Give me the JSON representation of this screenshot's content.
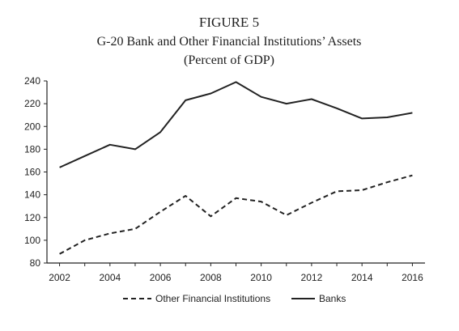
{
  "chart_data": {
    "type": "line",
    "figure_label": "FIGURE 5",
    "title_line1": "G-20 Bank and Other Financial Institutions’ Assets",
    "title_line2": "(Percent of GDP)",
    "xlabel": "",
    "ylabel": "",
    "ylim": [
      80,
      240
    ],
    "y_ticks": [
      80,
      100,
      120,
      140,
      160,
      180,
      200,
      220,
      240
    ],
    "xlim": [
      2001.5,
      2016.5
    ],
    "x_ticks": [
      2002,
      2004,
      2006,
      2008,
      2010,
      2012,
      2014,
      2016
    ],
    "x": [
      2002,
      2003,
      2004,
      2005,
      2006,
      2007,
      2008,
      2009,
      2010,
      2011,
      2012,
      2013,
      2014,
      2015,
      2016
    ],
    "series": [
      {
        "name": "Other Financial Institutions",
        "style": "dashed",
        "values": [
          88,
          100,
          106,
          110,
          125,
          139,
          121,
          137,
          134,
          122,
          133,
          143,
          144,
          151,
          157
        ]
      },
      {
        "name": "Banks",
        "style": "solid",
        "values": [
          164,
          174,
          184,
          180,
          195,
          223,
          229,
          239,
          226,
          220,
          224,
          216,
          207,
          208,
          212
        ]
      }
    ],
    "grid": false,
    "legend_position": "bottom-center"
  },
  "colors": {
    "line": "#222222",
    "axis": "#222222",
    "text": "#1e1e1e"
  }
}
